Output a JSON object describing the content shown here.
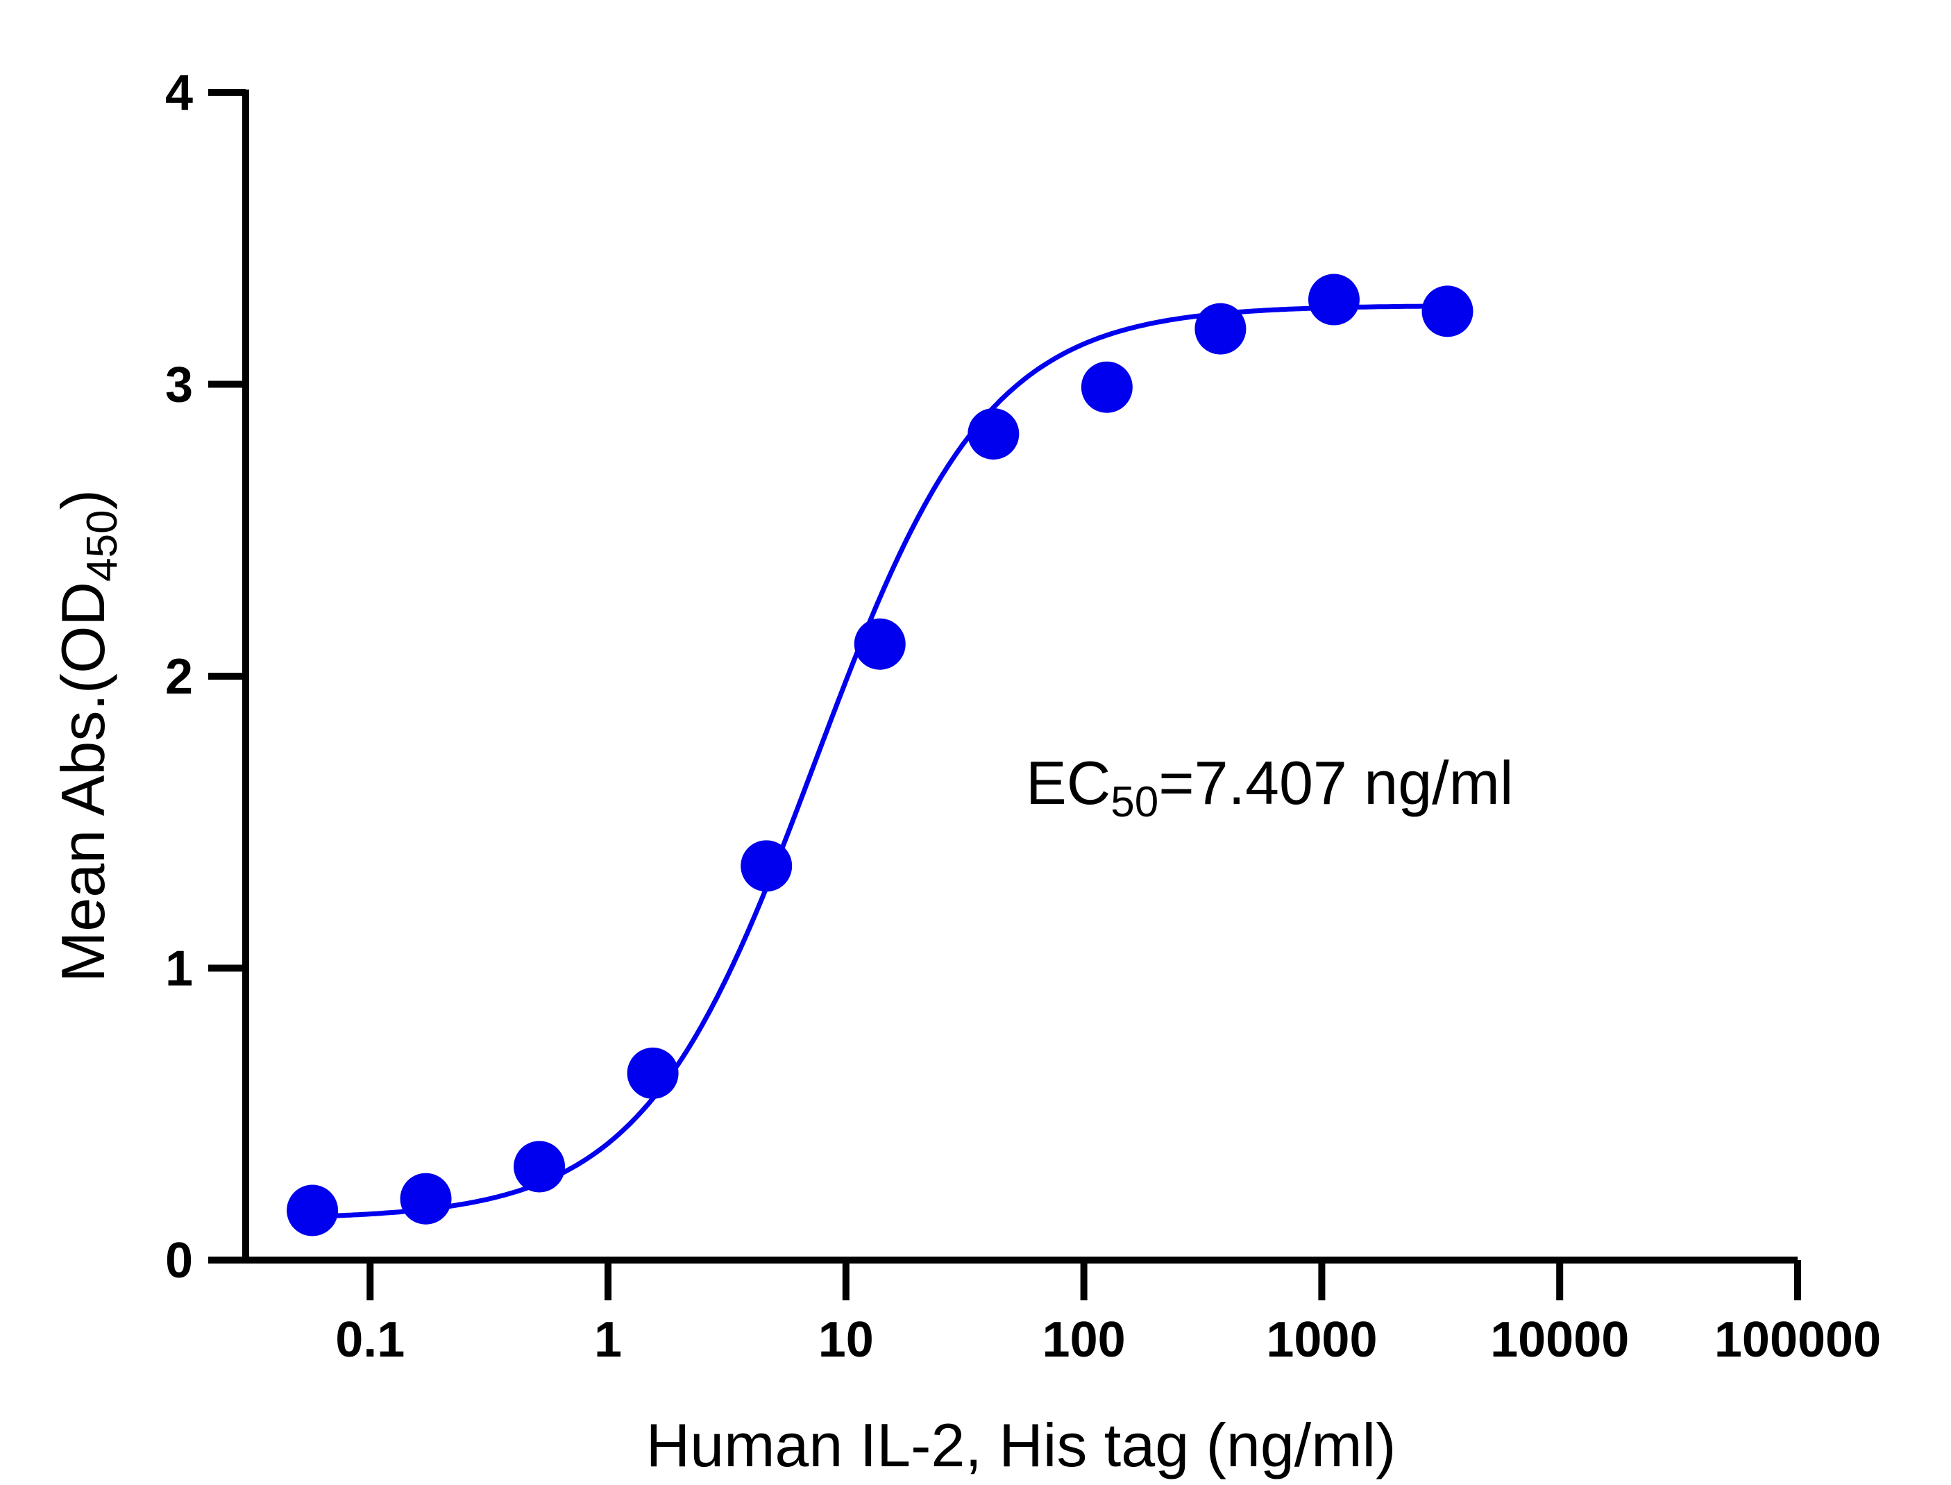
{
  "chart_data": {
    "type": "scatter",
    "x_scale": "log",
    "xlabel": "Human IL-2, His tag (ng/ml)",
    "ylabel_main": "Mean Abs.(OD",
    "ylabel_sub": "450",
    "ylabel_close": ")",
    "xlim": [
      0.03,
      100000
    ],
    "ylim": [
      0,
      4
    ],
    "x_ticks": [
      0.1,
      1,
      10,
      100,
      1000,
      10000,
      100000
    ],
    "x_tick_labels": [
      "0.1",
      "1",
      "10",
      "100",
      "1000",
      "10000",
      "100000"
    ],
    "y_ticks": [
      0,
      1,
      2,
      3,
      4
    ],
    "y_tick_labels": [
      "0",
      "1",
      "2",
      "3",
      "4"
    ],
    "grid": false,
    "color": "#0000ee",
    "series": [
      {
        "x": [
          0.0572,
          0.1715,
          0.5144,
          1.543,
          4.63,
          13.89,
          41.67,
          125,
          375,
          1125,
          3375
        ],
        "y": [
          0.17,
          0.21,
          0.32,
          0.64,
          1.35,
          2.11,
          2.83,
          2.99,
          3.19,
          3.29,
          3.25
        ]
      }
    ],
    "fit": {
      "model": "4PL",
      "bottom": 0.14,
      "top": 3.27,
      "ec50": 7.407,
      "hill": 1.2
    },
    "annotation": {
      "main": "EC",
      "sub": "50",
      "rest": "=7.407 ng/ml"
    }
  }
}
